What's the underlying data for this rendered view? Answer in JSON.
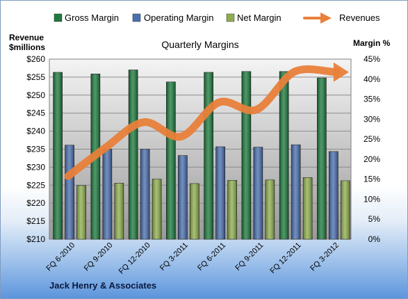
{
  "chart_data": {
    "type": "bar",
    "title": "Quarterly Margins",
    "footer": "Jack Henry & Associates",
    "left_axis": {
      "label_line1": "Revenue",
      "label_line2": "$millions",
      "min": 210,
      "max": 260,
      "step": 5,
      "prefix": "$",
      "tick_labels": [
        "$210",
        "$215",
        "$220",
        "$225",
        "$230",
        "$235",
        "$240",
        "$245",
        "$250",
        "$255",
        "$260"
      ]
    },
    "right_axis": {
      "label": "Margin %",
      "min": 0,
      "max": 45,
      "step": 5,
      "tick_labels": [
        "0%",
        "5%",
        "10%",
        "15%",
        "20%",
        "25%",
        "30%",
        "35%",
        "40%",
        "45%"
      ]
    },
    "categories": [
      "FQ 6-2010",
      "FQ 9-2010",
      "FQ 12-2010",
      "FQ 3-2011",
      "FQ 6-2011",
      "FQ 9-2011",
      "FQ 12-2011",
      "FQ 3-2012"
    ],
    "series": [
      {
        "name": "Gross Margin",
        "axis": "right",
        "kind": "bar",
        "color": "#1e7a3e",
        "values": [
          41.7,
          41.3,
          42.3,
          39.3,
          41.7,
          41.9,
          41.9,
          40.3
        ]
      },
      {
        "name": "Operating Margin",
        "axis": "right",
        "kind": "bar",
        "color": "#4a6fae",
        "values": [
          23.5,
          22.5,
          22.5,
          20.9,
          23.1,
          23.0,
          23.6,
          21.9
        ]
      },
      {
        "name": "Net Margin",
        "axis": "right",
        "kind": "bar",
        "color": "#8fae4f",
        "values": [
          13.4,
          14.0,
          15.0,
          13.9,
          14.7,
          14.8,
          15.4,
          14.6
        ]
      },
      {
        "name": "Revenues",
        "axis": "left",
        "kind": "line",
        "color": "#e8803a",
        "values": [
          227.5,
          235.5,
          242.5,
          238.5,
          248,
          246,
          256.5,
          256
        ]
      }
    ],
    "grid": true,
    "legend_position": "top"
  }
}
